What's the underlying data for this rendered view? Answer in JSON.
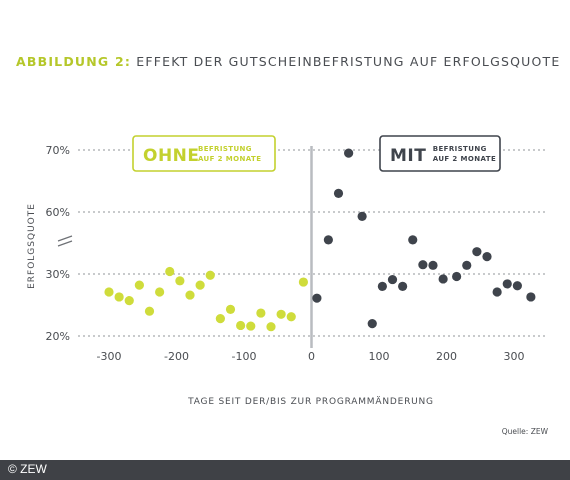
{
  "title": {
    "lead": "ABBILDUNG 2:",
    "rest": "EFFEKT DER GUTSCHEINBEFRISTUNG AUF ERFOLGSQUOTE"
  },
  "chart_data": {
    "type": "scatter",
    "xlabel": "TAGE SEIT DER/BIS ZUR PROGRAMMÄNDERUNG",
    "ylabel": "ERFOLGSQUOTE",
    "xlim": [
      -330,
      330
    ],
    "x_ticks": [
      -300,
      -200,
      -100,
      0,
      100,
      200,
      300
    ],
    "y_ticks": [
      20,
      30,
      60,
      70
    ],
    "y_tick_labels": [
      "20%",
      "30%",
      "60%",
      "70%"
    ],
    "y_axis_break": "between 30% and 60%",
    "grid": "horizontal dotted",
    "divider_at_x": 0,
    "source": "Quelle: ZEW",
    "groups": [
      {
        "badge_big": "OHNE",
        "badge_small_1": "BEFRISTUNG",
        "badge_small_2": "AUF 2 MONATE",
        "color": "#cfdc3b",
        "points": [
          [
            -300,
            27.1
          ],
          [
            -285,
            26.3
          ],
          [
            -270,
            25.7
          ],
          [
            -255,
            28.2
          ],
          [
            -240,
            24.0
          ],
          [
            -225,
            27.1
          ],
          [
            -210,
            30.4
          ],
          [
            -195,
            28.9
          ],
          [
            -180,
            26.6
          ],
          [
            -165,
            28.2
          ],
          [
            -150,
            29.8
          ],
          [
            -135,
            22.8
          ],
          [
            -120,
            24.3
          ],
          [
            -105,
            21.7
          ],
          [
            -90,
            21.6
          ],
          [
            -75,
            23.7
          ],
          [
            -60,
            21.5
          ],
          [
            -45,
            23.5
          ],
          [
            -30,
            23.1
          ],
          [
            -12,
            28.7
          ]
        ]
      },
      {
        "badge_big": "MIT",
        "badge_small_1": "BEFRISTUNG",
        "badge_small_2": "AUF 2 MONATE",
        "color": "#3f444c",
        "points": [
          [
            8,
            26.1
          ],
          [
            25,
            55.5
          ],
          [
            40,
            63.0
          ],
          [
            55,
            69.5
          ],
          [
            75,
            59.3
          ],
          [
            90,
            22.0
          ],
          [
            105,
            28.0
          ],
          [
            120,
            29.1
          ],
          [
            135,
            28.0
          ],
          [
            150,
            55.5
          ],
          [
            165,
            31.5
          ],
          [
            180,
            31.4
          ],
          [
            195,
            29.2
          ],
          [
            215,
            29.6
          ],
          [
            230,
            31.4
          ],
          [
            245,
            33.6
          ],
          [
            260,
            32.8
          ],
          [
            275,
            27.1
          ],
          [
            290,
            28.4
          ],
          [
            305,
            28.1
          ],
          [
            325,
            26.3
          ]
        ]
      }
    ]
  },
  "footer": {
    "copyright": "© ZEW"
  }
}
